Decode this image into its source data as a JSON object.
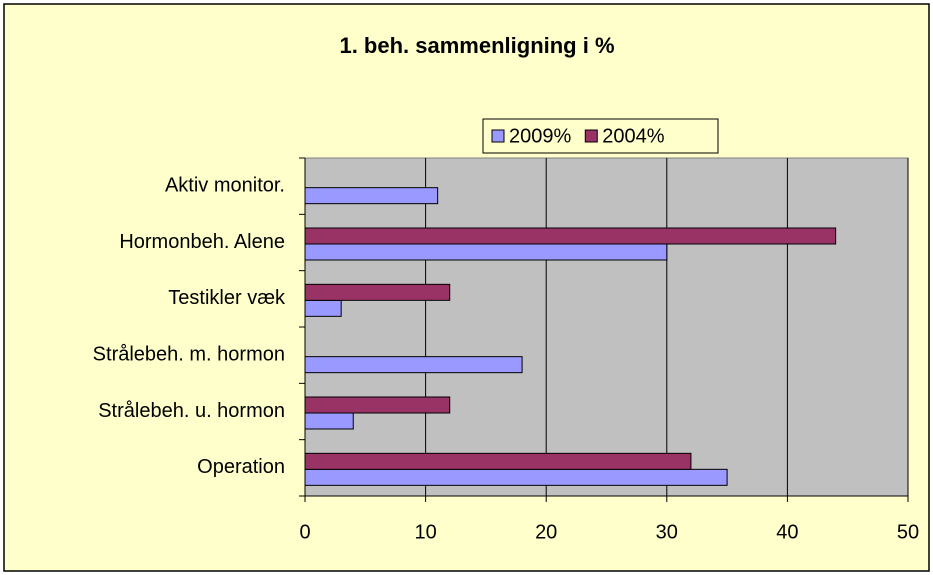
{
  "chart_data": {
    "type": "hbar",
    "title": "1. beh. sammenligning i %",
    "categories": [
      "Aktiv monitor.",
      "Hormonbeh. Alene",
      "Testikler væk",
      "Strålebeh. m. hormon",
      "Strålebeh. u. hormon",
      "Operation"
    ],
    "series": [
      {
        "name": "2009%",
        "color": "#9999ff",
        "values": [
          11,
          30,
          3,
          18,
          4,
          35
        ]
      },
      {
        "name": "2004%",
        "color": "#993366",
        "values": [
          null,
          44,
          12,
          null,
          12,
          32
        ]
      }
    ],
    "xlim": [
      0,
      50
    ],
    "xticks": [
      0,
      10,
      20,
      30,
      40,
      50
    ],
    "grid": true,
    "legend": "top"
  }
}
